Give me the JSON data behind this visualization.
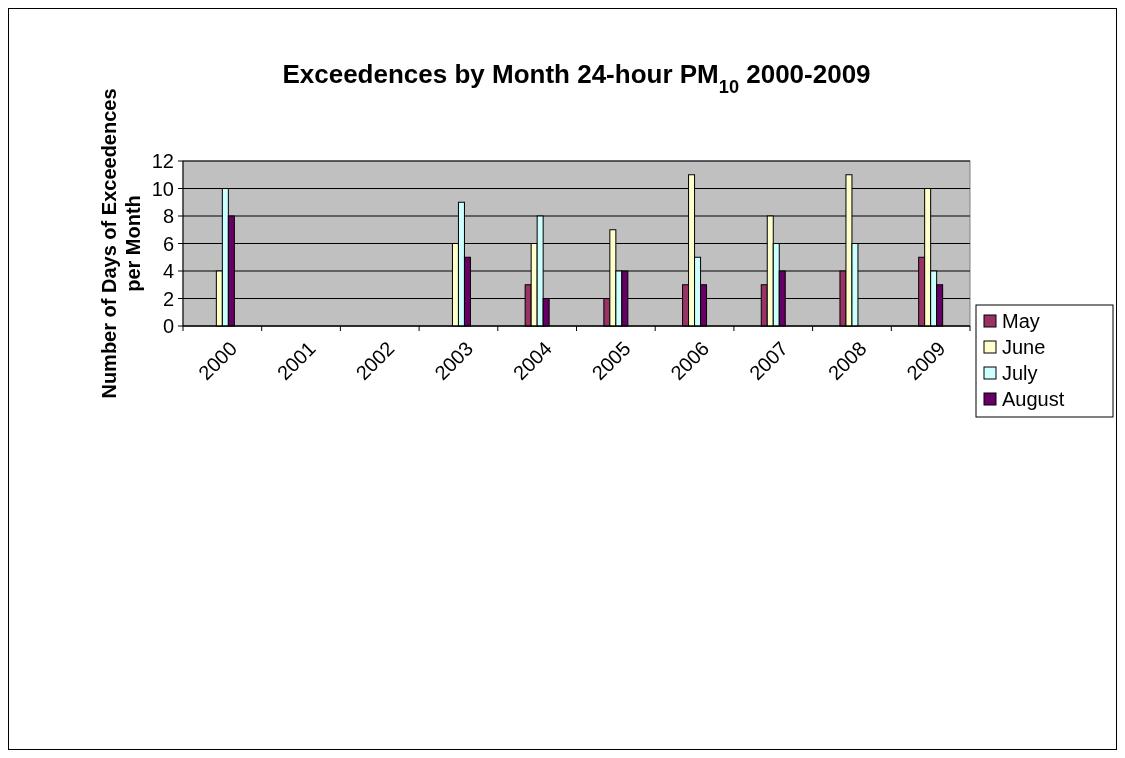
{
  "chart_data": {
    "type": "bar",
    "title": "Exceedences by Month 24-hour PM$_{10}$ 2000-2009",
    "ylabel": "Number of Days of Exceedences per Month",
    "categories": [
      "2000",
      "2001",
      "2002",
      "2003",
      "2004",
      "2005",
      "2006",
      "2007",
      "2008",
      "2009"
    ],
    "series": [
      {
        "name": "May",
        "color": "#993366",
        "values": [
          0,
          0,
          0,
          0,
          3,
          2,
          3,
          3,
          4,
          5
        ]
      },
      {
        "name": "June",
        "color": "#ffffcc",
        "values": [
          4,
          0,
          0,
          6,
          6,
          7,
          11,
          8,
          11,
          10
        ]
      },
      {
        "name": "July",
        "color": "#ccffff",
        "values": [
          10,
          0,
          0,
          9,
          8,
          4,
          5,
          6,
          6,
          4
        ]
      },
      {
        "name": "August",
        "color": "#660066",
        "values": [
          8,
          0,
          0,
          5,
          2,
          4,
          3,
          4,
          0,
          3
        ]
      }
    ],
    "ylim": [
      0,
      12
    ],
    "yticks": [
      0,
      2,
      4,
      6,
      8,
      10,
      12
    ],
    "grid": "y",
    "legend": "right"
  }
}
